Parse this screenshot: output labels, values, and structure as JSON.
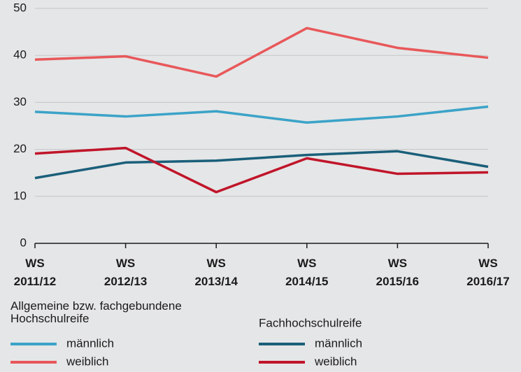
{
  "chart_data": {
    "type": "line",
    "categories": [
      "WS 2011/12",
      "WS 2012/13",
      "WS 2013/14",
      "WS 2014/15",
      "WS 2015/16",
      "WS 2016/17"
    ],
    "ylim": [
      0,
      50
    ],
    "yticks": [
      0,
      10,
      20,
      30,
      40,
      50
    ],
    "grid": true,
    "groups": [
      {
        "title": "Allgemeine bzw. fachgebundene Hochschulreife",
        "series": [
          {
            "name": "männlich",
            "color": "#3ba3c8",
            "values": [
              28,
              27,
              28.1,
              25.7,
              27,
              29.1
            ]
          },
          {
            "name": "weiblich",
            "color": "#e8585a",
            "values": [
              39.1,
              39.8,
              35.5,
              45.8,
              41.6,
              39.5
            ]
          }
        ]
      },
      {
        "title": "Fachhochschulreife",
        "series": [
          {
            "name": "männlich",
            "color": "#1a5f7a",
            "values": [
              13.9,
              17.2,
              17.6,
              18.8,
              19.6,
              16.3
            ]
          },
          {
            "name": "weiblich",
            "color": "#c0152a",
            "values": [
              19.1,
              20.3,
              10.9,
              18.1,
              14.8,
              15.1
            ]
          }
        ]
      }
    ]
  }
}
